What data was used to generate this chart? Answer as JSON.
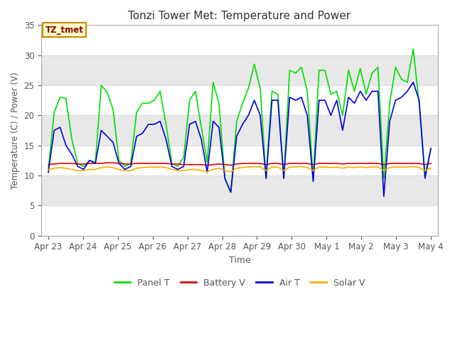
{
  "title": "Tonzi Tower Met: Temperature and Power",
  "xlabel": "Time",
  "ylabel": "Temperature (C) / Power (V)",
  "ylim": [
    0,
    35
  ],
  "yticks": [
    0,
    5,
    10,
    15,
    20,
    25,
    30,
    35
  ],
  "background_color": "#ffffff",
  "plot_bg_color": "#ffffff",
  "band_colors": [
    "#ffffff",
    "#e8e8e8"
  ],
  "annotation_text": "TZ_tmet",
  "annotation_bg": "#ffffcc",
  "annotation_border": "#cc8800",
  "annotation_text_color": "#880000",
  "legend_items": [
    "Panel T",
    "Battery V",
    "Air T",
    "Solar V"
  ],
  "legend_colors": [
    "#00dd00",
    "#dd0000",
    "#0000dd",
    "#ffaa00"
  ],
  "line_width": 1.2,
  "tick_label_color": "#555555",
  "tick_labels_x": [
    "Apr 23",
    "Apr 24",
    "Apr 25",
    "Apr 26",
    "Apr 27",
    "Apr 28",
    "Apr 29",
    "Apr 30",
    "May 1",
    "May 2",
    "May 3",
    "May 4"
  ],
  "panel_T": [
    11.0,
    20.5,
    23.0,
    22.8,
    16.0,
    12.0,
    11.5,
    12.5,
    12.2,
    25.0,
    23.8,
    21.0,
    12.5,
    11.5,
    12.0,
    20.5,
    22.0,
    22.0,
    22.5,
    24.0,
    18.5,
    12.0,
    11.5,
    13.0,
    22.5,
    24.0,
    18.0,
    12.2,
    25.5,
    22.0,
    9.5,
    7.2,
    19.0,
    22.0,
    24.5,
    28.5,
    24.5,
    9.5,
    24.0,
    23.5,
    9.5,
    27.5,
    27.0,
    28.0,
    24.0,
    9.5,
    27.5,
    27.5,
    23.5,
    24.0,
    20.0,
    27.5,
    24.0,
    27.8,
    23.5,
    27.0,
    28.0,
    9.5,
    22.0,
    28.0,
    26.0,
    25.5,
    31.0,
    22.0,
    10.0,
    14.5
  ],
  "battery_V": [
    11.8,
    11.9,
    12.0,
    12.0,
    12.0,
    11.9,
    11.9,
    12.0,
    12.0,
    12.0,
    12.1,
    12.1,
    12.0,
    11.9,
    11.9,
    12.0,
    12.0,
    12.0,
    12.0,
    12.0,
    12.0,
    11.9,
    11.9,
    11.8,
    11.8,
    11.8,
    11.8,
    11.7,
    11.8,
    11.9,
    11.8,
    11.7,
    11.9,
    12.0,
    12.0,
    12.0,
    12.0,
    11.8,
    12.0,
    12.0,
    11.8,
    12.0,
    12.0,
    12.0,
    12.0,
    11.8,
    12.0,
    12.0,
    12.0,
    12.0,
    11.9,
    12.0,
    12.0,
    12.0,
    12.0,
    12.0,
    12.0,
    11.8,
    12.0,
    12.0,
    12.0,
    12.0,
    12.0,
    12.0,
    11.8,
    12.0
  ],
  "air_T": [
    10.5,
    17.5,
    18.0,
    15.0,
    13.5,
    11.5,
    11.0,
    12.5,
    12.0,
    17.5,
    16.5,
    15.5,
    12.0,
    11.0,
    11.5,
    16.5,
    17.0,
    18.5,
    18.5,
    19.0,
    16.0,
    11.5,
    11.0,
    11.5,
    18.5,
    19.0,
    16.0,
    10.5,
    19.0,
    18.0,
    9.5,
    7.2,
    16.5,
    18.5,
    20.0,
    22.5,
    20.0,
    9.5,
    22.5,
    22.5,
    9.5,
    23.0,
    22.5,
    23.0,
    20.0,
    9.0,
    22.5,
    22.5,
    20.0,
    22.5,
    17.5,
    23.0,
    22.0,
    24.0,
    22.5,
    24.0,
    24.0,
    6.5,
    19.0,
    22.5,
    23.0,
    24.0,
    25.5,
    22.5,
    9.5,
    14.5
  ],
  "solar_V": [
    11.0,
    11.2,
    11.3,
    11.2,
    11.0,
    10.8,
    10.8,
    11.0,
    11.0,
    11.3,
    11.4,
    11.3,
    11.0,
    10.8,
    10.8,
    11.2,
    11.3,
    11.4,
    11.4,
    11.4,
    11.3,
    11.0,
    10.8,
    10.8,
    11.0,
    11.0,
    10.8,
    10.6,
    11.0,
    11.2,
    10.8,
    10.6,
    11.2,
    11.3,
    11.4,
    11.5,
    11.4,
    10.8,
    11.4,
    11.4,
    10.8,
    11.4,
    11.4,
    11.5,
    11.3,
    10.8,
    11.4,
    11.4,
    11.3,
    11.4,
    11.2,
    11.4,
    11.3,
    11.4,
    11.3,
    11.4,
    11.4,
    10.8,
    11.3,
    11.4,
    11.4,
    11.4,
    11.5,
    11.3,
    10.8,
    11.2
  ]
}
